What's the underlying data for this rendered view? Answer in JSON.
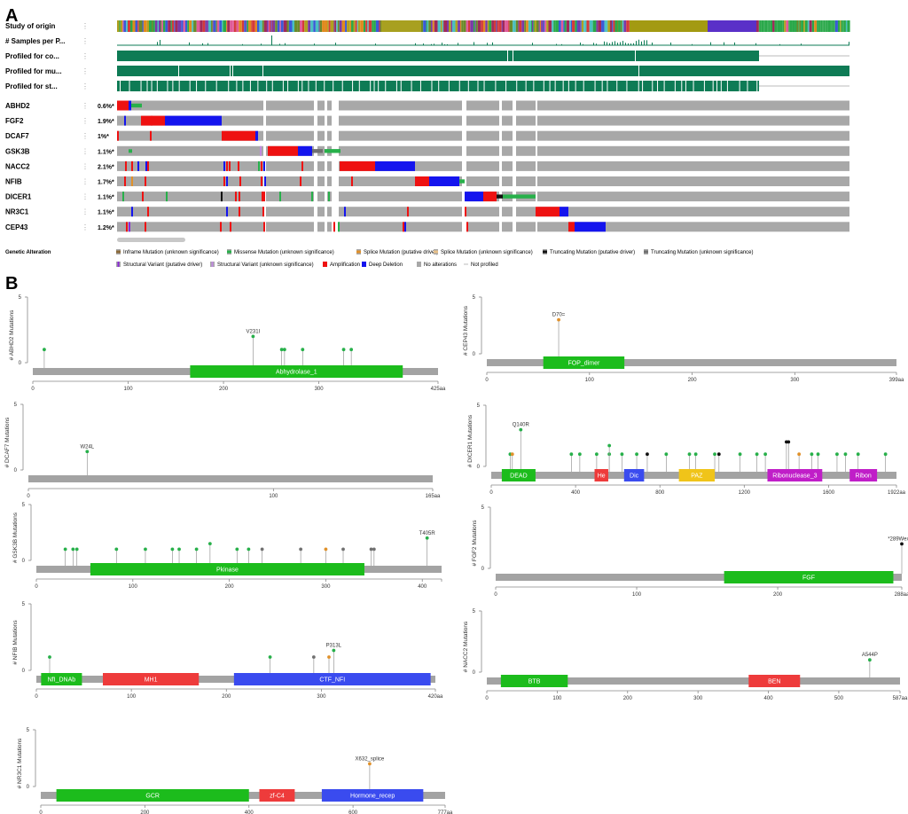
{
  "panel_a": {
    "letter": "A",
    "tracks": [
      "Study of origin",
      "# Samples per P...",
      "Profiled for co...",
      "Profiled for mu...",
      "Profiled for st..."
    ],
    "track_dots": "⋮",
    "genes": [
      {
        "name": "ABHD2",
        "pct": "0.6%*"
      },
      {
        "name": "FGF2",
        "pct": "1.9%*"
      },
      {
        "name": "DCAF7",
        "pct": "1%*"
      },
      {
        "name": "GSK3B",
        "pct": "1.1%*"
      },
      {
        "name": "NACC2",
        "pct": "2.1%*"
      },
      {
        "name": "NFIB",
        "pct": "1.7%*"
      },
      {
        "name": "DICER1",
        "pct": "1.1%*"
      },
      {
        "name": "NR3C1",
        "pct": "1.1%*"
      },
      {
        "name": "CEP43",
        "pct": "1.2%*"
      }
    ],
    "legend_title": "Genetic Alteration",
    "legend_row1": [
      {
        "label": "Inframe Mutation (unknown significance)",
        "color": "#8b6a3a"
      },
      {
        "label": "Missense Mutation (unknown significance)",
        "color": "#27b04a"
      },
      {
        "label": "Splice Mutation (putative driver)",
        "color": "#e0912a"
      },
      {
        "label": "Splice Mutation (unknown significance)",
        "color": "#e8c08a"
      },
      {
        "label": "Truncating Mutation (putative driver)",
        "color": "#111111"
      },
      {
        "label": "Truncating Mutation (unknown significance)",
        "color": "#707070"
      }
    ],
    "legend_row2": [
      {
        "label": "Structural Variant (putative driver)",
        "color": "#8a28d8"
      },
      {
        "label": "Structural Variant (unknown significance)",
        "color": "#c08ae0"
      },
      {
        "label": "Amplification",
        "color": "#ee1111"
      },
      {
        "label": "Deep Deletion",
        "color": "#1414ee"
      },
      {
        "label": "No alterations",
        "color": "#a8a8a8"
      },
      {
        "label": "Not profiled",
        "color": "#e8e8e8"
      }
    ],
    "colors": {
      "profiled": "#0e7b55",
      "no_alt": "#a8a8a8",
      "amp": "#ee1111",
      "del": "#1414ee",
      "missense": "#27b04a"
    }
  },
  "panel_b": {
    "letter": "B",
    "y_max": 5,
    "y_ticks": [
      "0",
      "5"
    ],
    "plots": [
      {
        "gene": "ABHD2",
        "ylabel": "# ABHD2 Mutations",
        "length": 425,
        "end_label": "425aa",
        "ticks": [
          0,
          100,
          200,
          300
        ],
        "domains": [
          {
            "name": "Abhydrolase_1",
            "start": 165,
            "end": 388,
            "color": "#1cbc1c"
          }
        ],
        "muts": [
          {
            "pos": 12,
            "count": 1,
            "color": "#27b04a"
          },
          {
            "pos": 231,
            "count": 2,
            "color": "#27b04a",
            "label": "V231I"
          },
          {
            "pos": 261,
            "count": 1,
            "color": "#27b04a"
          },
          {
            "pos": 264,
            "count": 1,
            "color": "#27b04a"
          },
          {
            "pos": 283,
            "count": 1,
            "color": "#27b04a"
          },
          {
            "pos": 326,
            "count": 1,
            "color": "#27b04a"
          },
          {
            "pos": 334,
            "count": 1,
            "color": "#27b04a"
          }
        ]
      },
      {
        "gene": "CEP43",
        "ylabel": "# CEP43 Mutations",
        "length": 399,
        "end_label": "399aa",
        "ticks": [
          0,
          100,
          200,
          300
        ],
        "domains": [
          {
            "name": "FOP_dimer",
            "start": 55,
            "end": 134,
            "color": "#1cbc1c"
          }
        ],
        "muts": [
          {
            "pos": 70,
            "count": 3,
            "color": "#e0912a",
            "label": "D70="
          }
        ]
      },
      {
        "gene": "DCAF7",
        "ylabel": "# DCAF7 Mutations",
        "length": 165,
        "end_label": "165aa",
        "ticks": [
          0,
          100
        ],
        "domains": [],
        "muts": [
          {
            "pos": 24,
            "count": 1.4,
            "color": "#27b04a",
            "label": "W24L"
          }
        ]
      },
      {
        "gene": "DICER1",
        "ylabel": "# DICER1 Mutations",
        "length": 1922,
        "end_label": "1922aa",
        "ticks": [
          0,
          400,
          800,
          1200,
          1600
        ],
        "domains": [
          {
            "name": "DEAD",
            "start": 50,
            "end": 210,
            "color": "#1cbc1c"
          },
          {
            "name": "He",
            "start": 490,
            "end": 555,
            "color": "#ee3b3b"
          },
          {
            "name": "Dic",
            "start": 630,
            "end": 725,
            "color": "#3a4bef"
          },
          {
            "name": "PAZ",
            "start": 890,
            "end": 1060,
            "color": "#f0c419"
          },
          {
            "name": "Ribonuclease_3",
            "start": 1310,
            "end": 1570,
            "color": "#c01ec8"
          },
          {
            "name": "Ribon",
            "start": 1700,
            "end": 1830,
            "color": "#c01ec8"
          }
        ],
        "muts": [
          {
            "pos": 90,
            "count": 1,
            "color": "#27b04a"
          },
          {
            "pos": 100,
            "count": 1,
            "color": "#e0912a"
          },
          {
            "pos": 140,
            "count": 3,
            "color": "#27b04a",
            "label": "Q140R"
          },
          {
            "pos": 380,
            "count": 1,
            "color": "#27b04a"
          },
          {
            "pos": 420,
            "count": 1,
            "color": "#27b04a"
          },
          {
            "pos": 500,
            "count": 1,
            "color": "#27b04a"
          },
          {
            "pos": 560,
            "count": 1,
            "color": "#27b04a"
          },
          {
            "pos": 560,
            "count": 1.7,
            "color": "#27b04a"
          },
          {
            "pos": 620,
            "count": 1,
            "color": "#27b04a"
          },
          {
            "pos": 690,
            "count": 1,
            "color": "#27b04a"
          },
          {
            "pos": 740,
            "count": 1,
            "color": "#111111"
          },
          {
            "pos": 830,
            "count": 1,
            "color": "#27b04a"
          },
          {
            "pos": 940,
            "count": 1,
            "color": "#27b04a"
          },
          {
            "pos": 970,
            "count": 1,
            "color": "#27b04a"
          },
          {
            "pos": 1060,
            "count": 1,
            "color": "#27b04a"
          },
          {
            "pos": 1080,
            "count": 1,
            "color": "#111111"
          },
          {
            "pos": 1180,
            "count": 1,
            "color": "#27b04a"
          },
          {
            "pos": 1260,
            "count": 1,
            "color": "#27b04a"
          },
          {
            "pos": 1300,
            "count": 1,
            "color": "#27b04a"
          },
          {
            "pos": 1400,
            "count": 2,
            "color": "#111111"
          },
          {
            "pos": 1410,
            "count": 2,
            "color": "#111111"
          },
          {
            "pos": 1460,
            "count": 1,
            "color": "#e0912a"
          },
          {
            "pos": 1520,
            "count": 1,
            "color": "#27b04a"
          },
          {
            "pos": 1550,
            "count": 1,
            "color": "#27b04a"
          },
          {
            "pos": 1640,
            "count": 1,
            "color": "#27b04a"
          },
          {
            "pos": 1680,
            "count": 1,
            "color": "#27b04a"
          },
          {
            "pos": 1740,
            "count": 1,
            "color": "#27b04a"
          },
          {
            "pos": 1870,
            "count": 1,
            "color": "#27b04a"
          }
        ]
      },
      {
        "gene": "GSK3B",
        "ylabel": "# GSK3B Mutations",
        "length": 420,
        "end_label": "",
        "ticks": [
          0,
          100,
          200,
          300,
          400
        ],
        "domains": [
          {
            "name": "Pkinase",
            "start": 56,
            "end": 340,
            "color": "#1cbc1c"
          }
        ],
        "muts": [
          {
            "pos": 30,
            "count": 1,
            "color": "#27b04a"
          },
          {
            "pos": 38,
            "count": 1,
            "color": "#27b04a"
          },
          {
            "pos": 42,
            "count": 1,
            "color": "#27b04a"
          },
          {
            "pos": 83,
            "count": 1,
            "color": "#27b04a"
          },
          {
            "pos": 113,
            "count": 1,
            "color": "#27b04a"
          },
          {
            "pos": 141,
            "count": 1,
            "color": "#27b04a"
          },
          {
            "pos": 148,
            "count": 1,
            "color": "#27b04a"
          },
          {
            "pos": 166,
            "count": 1,
            "color": "#27b04a"
          },
          {
            "pos": 180,
            "count": 1.5,
            "color": "#27b04a"
          },
          {
            "pos": 208,
            "count": 1,
            "color": "#27b04a"
          },
          {
            "pos": 220,
            "count": 1,
            "color": "#27b04a"
          },
          {
            "pos": 234,
            "count": 1,
            "color": "#707070"
          },
          {
            "pos": 274,
            "count": 1,
            "color": "#707070"
          },
          {
            "pos": 300,
            "count": 1,
            "color": "#e0912a"
          },
          {
            "pos": 318,
            "count": 1,
            "color": "#707070"
          },
          {
            "pos": 347,
            "count": 1,
            "color": "#707070"
          },
          {
            "pos": 350,
            "count": 1,
            "color": "#707070"
          },
          {
            "pos": 405,
            "count": 2,
            "color": "#27b04a",
            "label": "T405R"
          }
        ]
      },
      {
        "gene": "FGF2",
        "ylabel": "# FGF2 Mutations",
        "length": 288,
        "end_label": "288aa",
        "ticks": [
          0,
          100,
          200
        ],
        "domains": [
          {
            "name": "FGF",
            "start": 162,
            "end": 282,
            "color": "#1cbc1c"
          }
        ],
        "muts": [
          {
            "pos": 288,
            "count": 2,
            "color": "#111111",
            "label": "*289Wext*2"
          }
        ]
      },
      {
        "gene": "NFIB",
        "ylabel": "# NFIB Mutations",
        "length": 420,
        "end_label": "420aa",
        "ticks": [
          0,
          100,
          200,
          300
        ],
        "domains": [
          {
            "name": "NfI_DNAb",
            "start": 5,
            "end": 48,
            "color": "#1cbc1c"
          },
          {
            "name": "MH1",
            "start": 70,
            "end": 171,
            "color": "#ee3b3b"
          },
          {
            "name": "CTF_NFI",
            "start": 208,
            "end": 415,
            "color": "#3a4bef"
          }
        ],
        "muts": [
          {
            "pos": 14,
            "count": 1,
            "color": "#27b04a"
          },
          {
            "pos": 246,
            "count": 1,
            "color": "#27b04a"
          },
          {
            "pos": 292,
            "count": 1,
            "color": "#707070"
          },
          {
            "pos": 308,
            "count": 1,
            "color": "#e0912a"
          },
          {
            "pos": 313,
            "count": 1.5,
            "color": "#27b04a",
            "label": "P313L"
          }
        ]
      },
      {
        "gene": "NACC2",
        "ylabel": "# NACC2 Mutations",
        "length": 587,
        "end_label": "587aa",
        "ticks": [
          0,
          100,
          200,
          300,
          400,
          500
        ],
        "domains": [
          {
            "name": "BTB",
            "start": 20,
            "end": 115,
            "color": "#1cbc1c"
          },
          {
            "name": "BEN",
            "start": 372,
            "end": 445,
            "color": "#ee3b3b"
          }
        ],
        "muts": [
          {
            "pos": 544,
            "count": 1,
            "color": "#27b04a",
            "label": "A544P"
          }
        ]
      },
      {
        "gene": "NR3C1",
        "ylabel": "# NR3C1 Mutations",
        "length": 777,
        "end_label": "777aa",
        "ticks": [
          0,
          200,
          400,
          600
        ],
        "domains": [
          {
            "name": "GCR",
            "start": 30,
            "end": 400,
            "color": "#1cbc1c"
          },
          {
            "name": "zf-C4",
            "start": 420,
            "end": 488,
            "color": "#ee3b3b"
          },
          {
            "name": "Hormone_recep",
            "start": 540,
            "end": 735,
            "color": "#3a4bef"
          }
        ],
        "muts": [
          {
            "pos": 632,
            "count": 2,
            "color": "#e0912a",
            "label": "X632_splice"
          }
        ]
      }
    ]
  }
}
